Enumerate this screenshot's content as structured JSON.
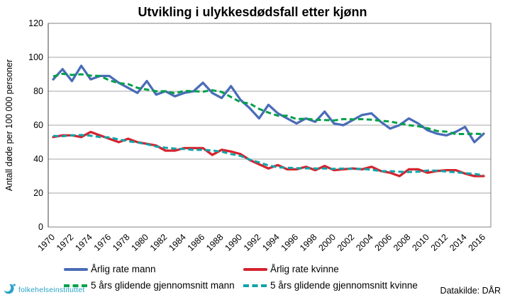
{
  "title_bar": {
    "title": "Utvikling i ulykkesdødsfall etter kjønn"
  },
  "source_note": "Datakilde: DÅR",
  "logo": {
    "text": "folkehelseinstituttet",
    "color": "#2AA3C6"
  },
  "colors": {
    "plot_border": "#808080",
    "gridline": "#A6A6A6",
    "left_axis": "#404040",
    "tick_text": "#000000"
  },
  "chart_data": {
    "type": "line",
    "title": "Utvikling i ulykkesdødsfall etter kjønn",
    "xlabel": "",
    "ylabel": "Antall døde per 100 000 personer",
    "ylim": [
      0,
      120
    ],
    "ytick_step": 20,
    "grid": true,
    "legend_position": "bottom",
    "x": [
      1970,
      1971,
      1972,
      1973,
      1974,
      1975,
      1976,
      1977,
      1978,
      1979,
      1980,
      1981,
      1982,
      1983,
      1984,
      1985,
      1986,
      1987,
      1988,
      1989,
      1990,
      1991,
      1992,
      1993,
      1994,
      1995,
      1996,
      1997,
      1998,
      1999,
      2000,
      2001,
      2002,
      2003,
      2004,
      2005,
      2006,
      2007,
      2008,
      2009,
      2010,
      2011,
      2012,
      2013,
      2014,
      2015,
      2016
    ],
    "xtick_every": 2,
    "series": [
      {
        "name": "Årlig rate mann",
        "color": "#4A6CB8",
        "style": "solid",
        "values": [
          87,
          93,
          86,
          95,
          87,
          89,
          89,
          85,
          82,
          79,
          86,
          78,
          80,
          77,
          79,
          80,
          85,
          79,
          76,
          83,
          75,
          70,
          64,
          72,
          67,
          64,
          61,
          64,
          62,
          68,
          61,
          60,
          63,
          66,
          67,
          62,
          58,
          60,
          64,
          61,
          57,
          55,
          54,
          56,
          59,
          50,
          55
        ]
      },
      {
        "name": "Årlig rate kvinne",
        "color": "#D5232E",
        "style": "solid",
        "values": [
          53,
          54,
          54,
          53,
          56,
          54,
          52,
          50,
          52,
          50,
          49,
          48,
          45,
          45,
          46.5,
          46.5,
          46.5,
          42.5,
          45.5,
          44.5,
          43,
          39.5,
          37,
          34.5,
          36.5,
          34,
          34,
          35.5,
          33.5,
          36,
          33.5,
          34,
          34.5,
          34,
          35.5,
          33,
          32,
          30,
          34,
          34,
          32,
          33,
          33.5,
          33.5,
          31.5,
          30,
          30
        ]
      },
      {
        "name": "5 års glidende gjennomsnitt mann",
        "color": "#00A04A",
        "style": "dashed",
        "values": [
          88.7,
          90.3,
          89.6,
          90,
          89.2,
          89,
          86.4,
          84.8,
          84.2,
          82,
          81,
          80,
          80,
          78.8,
          80.2,
          80,
          79.8,
          80.6,
          79.6,
          76.6,
          73.6,
          72.8,
          69.6,
          67.4,
          65.6,
          65.6,
          63.6,
          63.8,
          63.2,
          63,
          62.8,
          63.6,
          63.4,
          63.6,
          63.2,
          62.6,
          62.2,
          61,
          60,
          59.4,
          58.2,
          56.6,
          56.2,
          54.8,
          54.8,
          55,
          54.7
        ]
      },
      {
        "name": "5 års glidende gjennomsnitt kvinne",
        "color": "#0FA3A8",
        "style": "dashed",
        "values": [
          53.7,
          53.5,
          54,
          54.2,
          53.8,
          53,
          52.8,
          51.6,
          50.6,
          49.8,
          48.8,
          47.4,
          46.7,
          46.2,
          45.9,
          45.4,
          45.5,
          45.1,
          44.4,
          43,
          41.9,
          39.7,
          38.1,
          36.3,
          35.2,
          34.9,
          34.7,
          34.6,
          34.5,
          34.5,
          34.3,
          34.4,
          34.3,
          34.2,
          33.8,
          32.9,
          32.9,
          32.6,
          32.4,
          32.6,
          33.3,
          33.2,
          32.7,
          32.3,
          31.7,
          31.3,
          30.5
        ]
      }
    ]
  }
}
